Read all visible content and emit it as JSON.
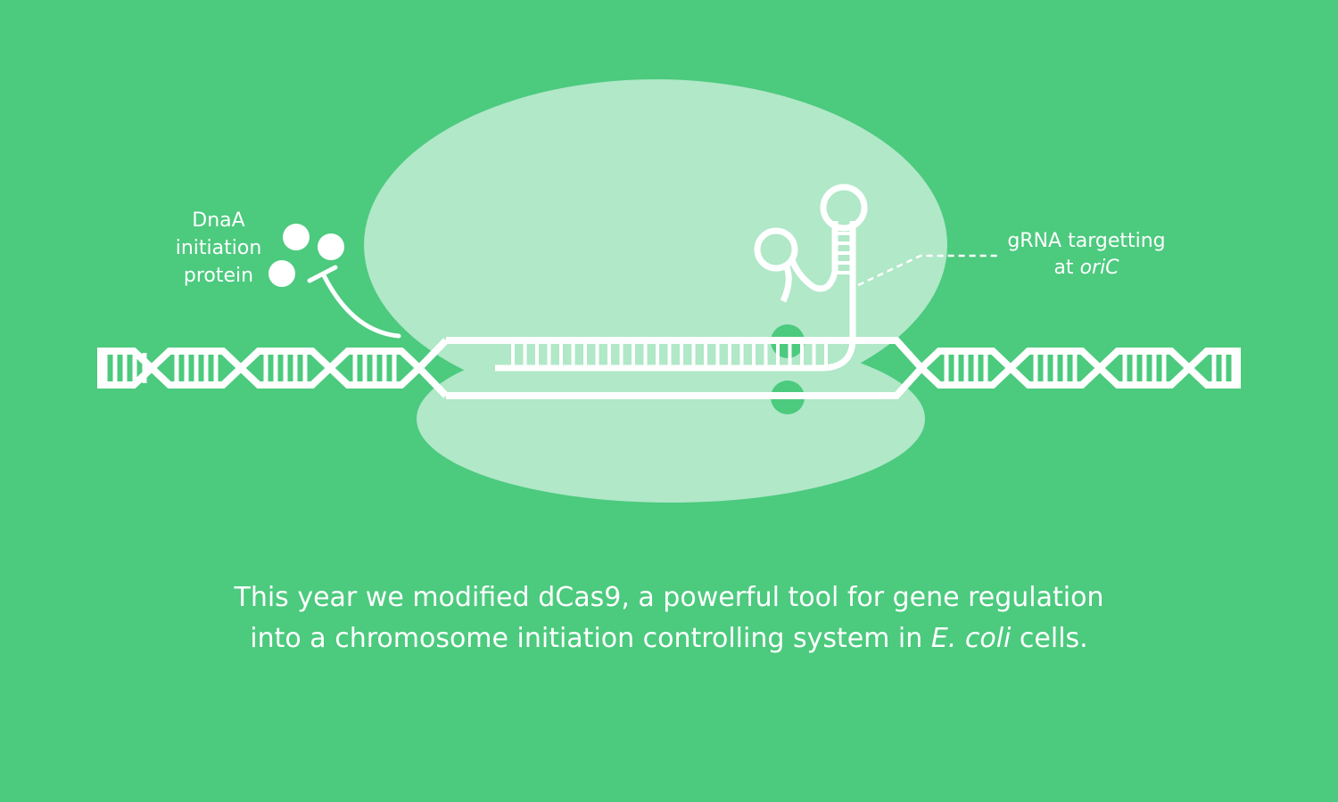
{
  "colors": {
    "background": "#4cca7e",
    "protein_body": "#b0e8c8",
    "strand": "#ffffff",
    "pocket": "#4cca7e"
  },
  "labels": {
    "dnaa": {
      "line1": "DnaA",
      "line2": "initiation",
      "line3": "protein"
    },
    "grna": {
      "line1": "gRNA targetting",
      "line2_prefix": "at ",
      "line2_italic": "oriC"
    }
  },
  "caption": {
    "line1": "This year we modified dCas9, a powerful tool for gene regulation",
    "line2_prefix": "into a chromosome initiation controlling system in ",
    "line2_italic": "E. coli",
    "line2_suffix": " cells."
  }
}
